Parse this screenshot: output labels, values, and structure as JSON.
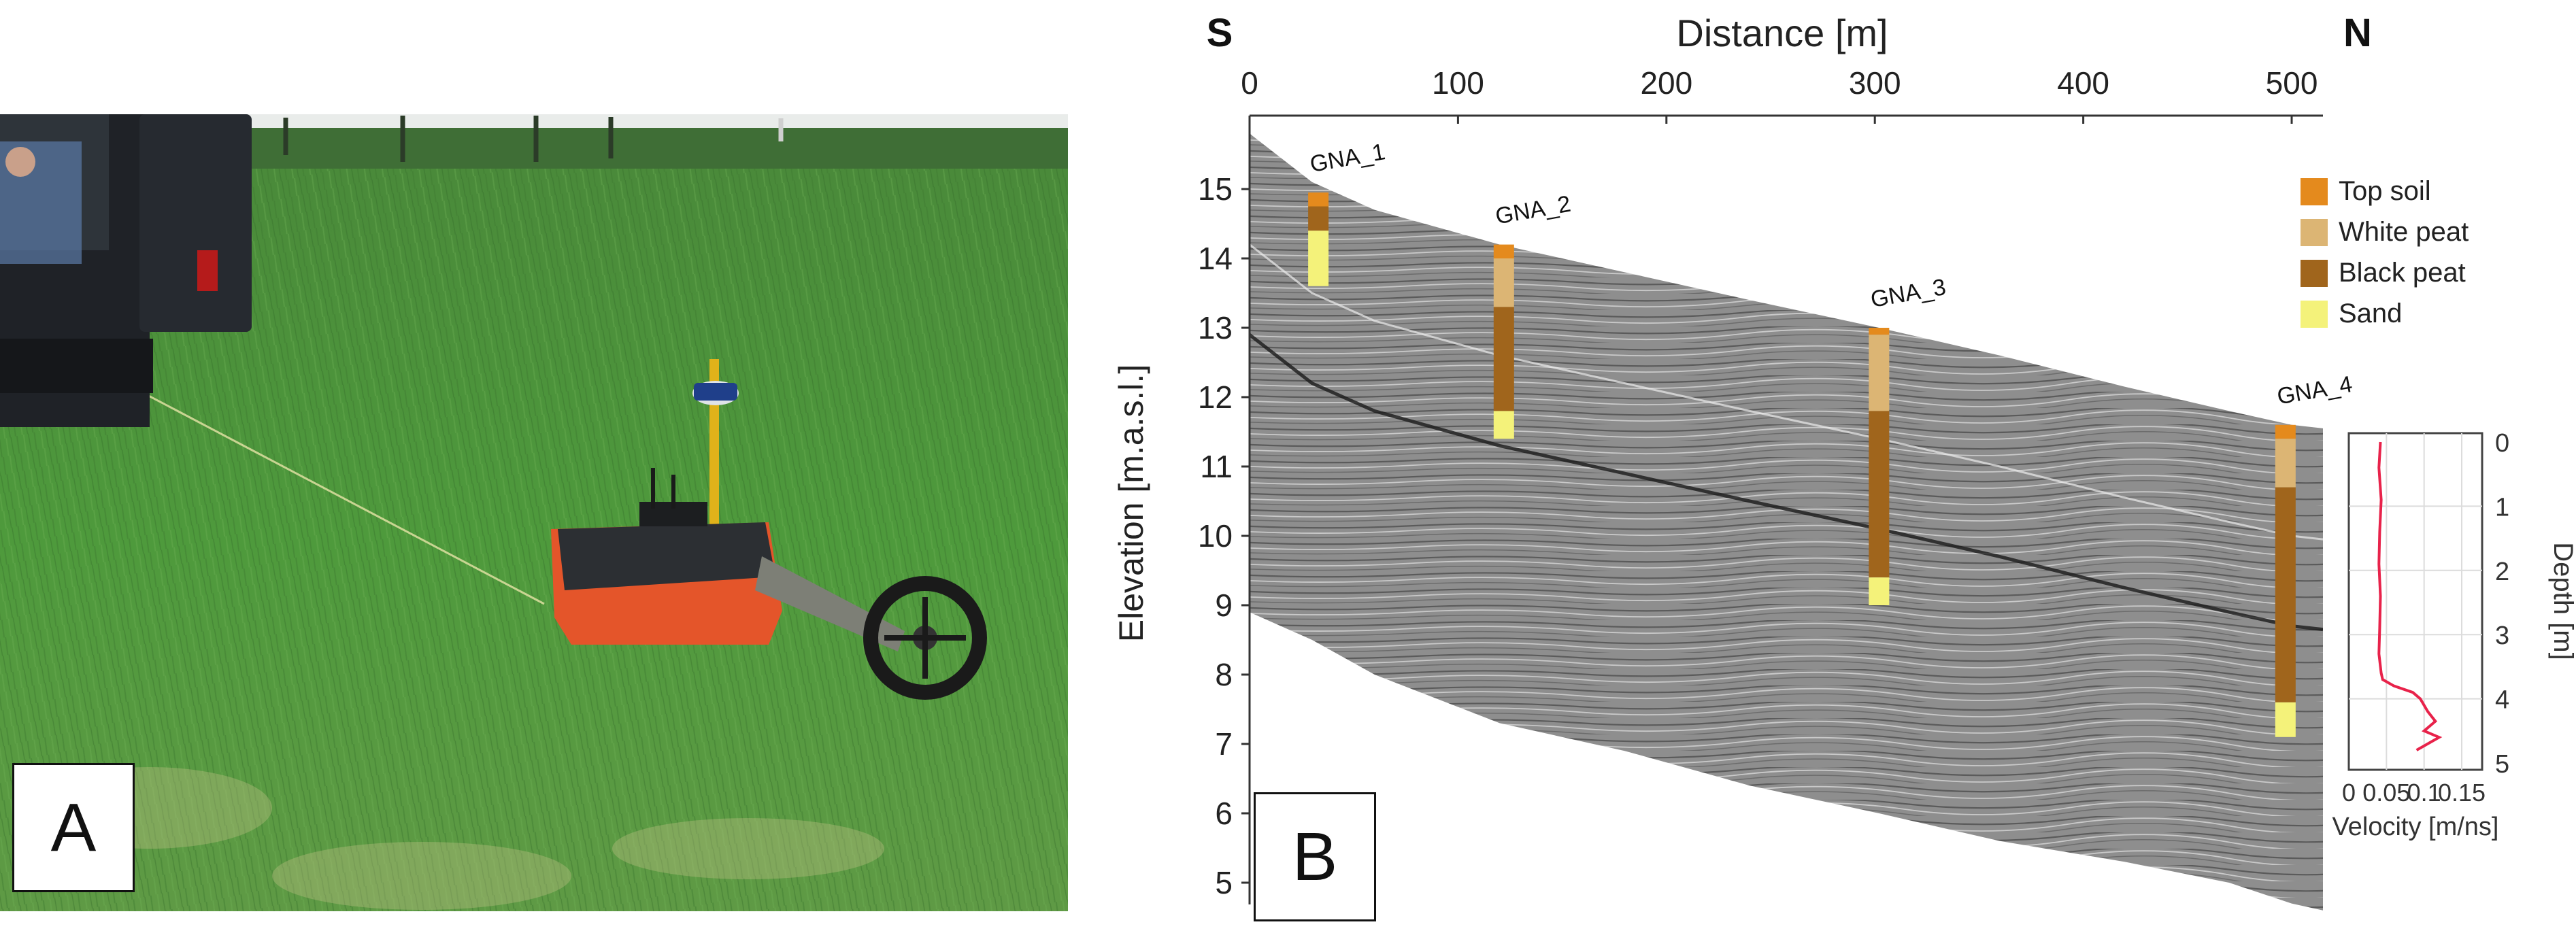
{
  "panel_a": {
    "label": "A"
  },
  "panel_b": {
    "label": "B",
    "direction_left": "S",
    "direction_right": "N",
    "x_axis_title": "Distance [m]",
    "y_axis_title": "Elevation [m.a.s.l.]",
    "x_ticks": [
      "0",
      "100",
      "200",
      "300",
      "400",
      "500"
    ],
    "y_ticks": [
      "15",
      "14",
      "13",
      "12",
      "11",
      "10",
      "9",
      "8",
      "7",
      "6",
      "5"
    ],
    "legend": [
      {
        "label": "Top soil",
        "color": "#e48a1d"
      },
      {
        "label": "White peat",
        "color": "#dcb574"
      },
      {
        "label": "Black peat",
        "color": "#a0651c"
      },
      {
        "label": "Sand",
        "color": "#f4f27a"
      }
    ],
    "boreholes": [
      {
        "name": "GNA_1",
        "x_m": 33,
        "top_m": 14.95,
        "layers": [
          {
            "type": "Top soil",
            "from": 14.95,
            "to": 14.75
          },
          {
            "type": "Black peat",
            "from": 14.75,
            "to": 14.4
          },
          {
            "type": "Sand",
            "from": 14.4,
            "to": 13.6
          }
        ]
      },
      {
        "name": "GNA_2",
        "x_m": 122,
        "top_m": 14.2,
        "layers": [
          {
            "type": "Top soil",
            "from": 14.2,
            "to": 14.0
          },
          {
            "type": "White peat",
            "from": 14.0,
            "to": 13.3
          },
          {
            "type": "Black peat",
            "from": 13.3,
            "to": 11.8
          },
          {
            "type": "Sand",
            "from": 11.8,
            "to": 11.4
          }
        ]
      },
      {
        "name": "GNA_3",
        "x_m": 302,
        "top_m": 13.0,
        "layers": [
          {
            "type": "Top soil",
            "from": 13.0,
            "to": 12.9
          },
          {
            "type": "White peat",
            "from": 12.9,
            "to": 11.8
          },
          {
            "type": "Black peat",
            "from": 11.8,
            "to": 9.4
          },
          {
            "type": "Sand",
            "from": 9.4,
            "to": 9.0
          }
        ]
      },
      {
        "name": "GNA_4",
        "x_m": 497,
        "top_m": 11.6,
        "layers": [
          {
            "type": "Top soil",
            "from": 11.6,
            "to": 11.4
          },
          {
            "type": "White peat",
            "from": 11.4,
            "to": 10.7
          },
          {
            "type": "Black peat",
            "from": 10.7,
            "to": 7.6
          },
          {
            "type": "Sand",
            "from": 7.6,
            "to": 7.1
          }
        ]
      }
    ],
    "surface_profile": {
      "distance_m": [
        0,
        30,
        60,
        120,
        180,
        240,
        302,
        360,
        420,
        470,
        500,
        515
      ],
      "top_elev_m": [
        15.8,
        15.1,
        14.7,
        14.2,
        13.8,
        13.4,
        13.0,
        12.6,
        12.15,
        11.8,
        11.6,
        11.55
      ],
      "bottom_elev_m": [
        8.9,
        8.5,
        8.0,
        7.3,
        6.9,
        6.4,
        6.0,
        5.6,
        5.3,
        5.0,
        4.7,
        4.6
      ]
    },
    "velocity_inset": {
      "x_axis_title": "Velocity [m/ns]",
      "y_axis_title": "Depth [m]",
      "x_ticks": [
        "0",
        "0.05",
        "0.1",
        "0.15"
      ],
      "y_ticks": [
        "0",
        "1",
        "2",
        "3",
        "4",
        "5"
      ],
      "line_color": "#e8224a",
      "velocity": [
        0.042,
        0.04,
        0.043,
        0.041,
        0.04,
        0.042,
        0.041,
        0.04,
        0.043,
        0.045,
        0.06,
        0.085,
        0.095,
        0.105,
        0.115,
        0.1,
        0.12,
        0.09
      ],
      "depth": [
        0.0,
        0.4,
        0.9,
        1.4,
        1.9,
        2.4,
        2.9,
        3.3,
        3.6,
        3.7,
        3.8,
        3.9,
        4.0,
        4.2,
        4.35,
        4.5,
        4.6,
        4.8
      ]
    }
  }
}
